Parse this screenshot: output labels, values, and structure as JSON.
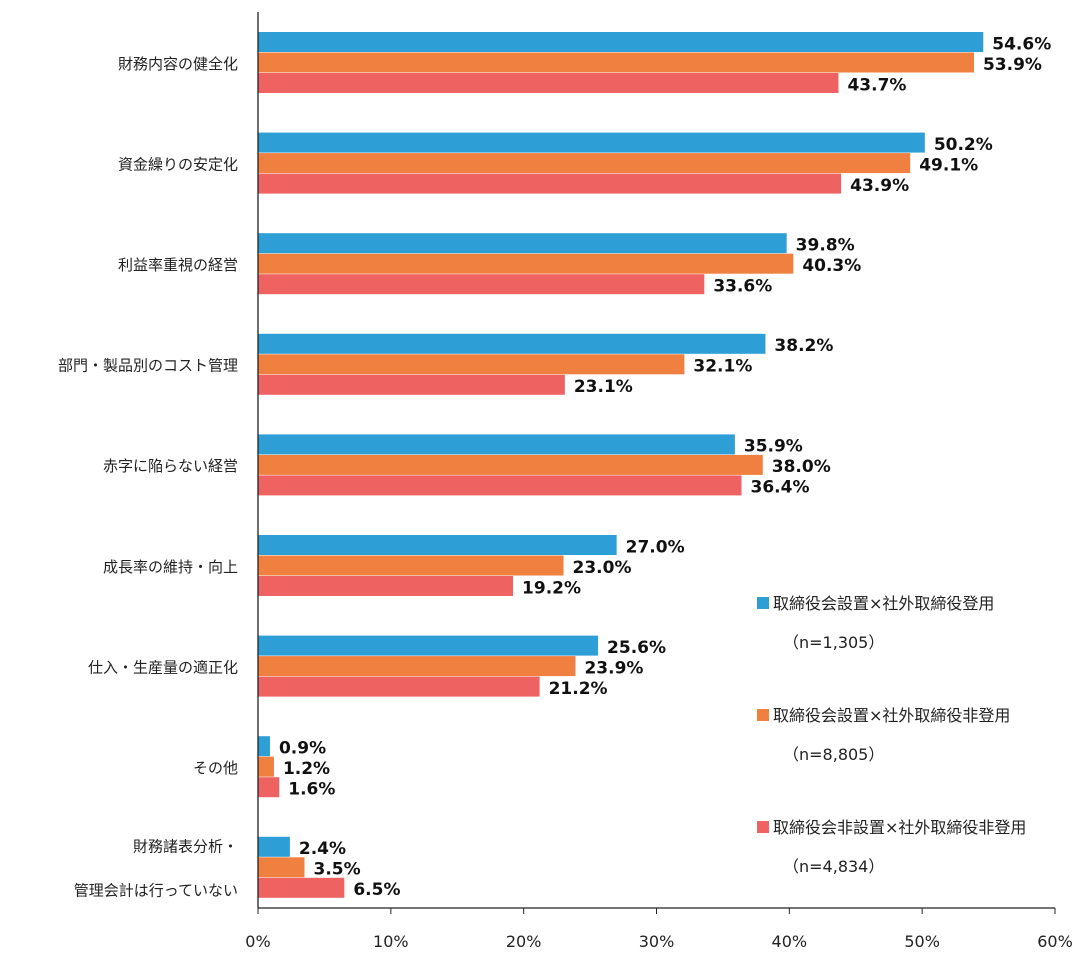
{
  "chart_data": {
    "type": "bar",
    "orientation": "horizontal",
    "categories": [
      "財務内容の健全化",
      "資金繰りの安定化",
      "利益率重視の経営",
      "部門・製品別のコスト管理",
      "赤字に陥らない経営",
      "成長率の維持・向上",
      "仕入・生産量の適正化",
      "その他",
      "財務諸表分析・\n管理会計は行っていない"
    ],
    "series": [
      {
        "name": "取締役会設置×社外取締役登用",
        "n_label": "（n=1,305）",
        "color": "#2E9ED6",
        "values": [
          54.6,
          50.2,
          39.8,
          38.2,
          35.9,
          27.0,
          25.6,
          0.9,
          2.4
        ]
      },
      {
        "name": "取締役会設置×社外取締役非登用",
        "n_label": "（n=8,805）",
        "color": "#F08040",
        "values": [
          53.9,
          49.1,
          40.3,
          32.1,
          38.0,
          23.0,
          23.9,
          1.2,
          3.5
        ]
      },
      {
        "name": "取締役会非設置×社外取締役非登用",
        "n_label": "（n=4,834）",
        "color": "#EF6262",
        "values": [
          43.7,
          43.9,
          33.6,
          23.1,
          36.4,
          19.2,
          21.2,
          1.6,
          6.5
        ]
      }
    ],
    "xlim": [
      0,
      60
    ],
    "xticks": [
      "0%",
      "10%",
      "20%",
      "30%",
      "40%",
      "50%",
      "60%"
    ],
    "value_suffix": "%",
    "grid": false,
    "legend_position": "bottom-right"
  }
}
